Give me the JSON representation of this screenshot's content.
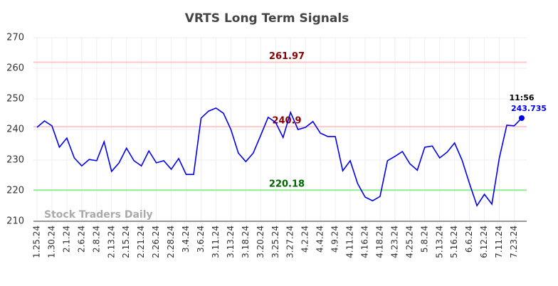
{
  "chart_data": {
    "type": "line",
    "title": "VRTS Long Term Signals",
    "categories": [
      "1.25.24",
      null,
      "1.30.24",
      null,
      "2.1.24",
      null,
      "2.6.24",
      null,
      "2.8.24",
      null,
      "2.13.24",
      null,
      "2.15.24",
      null,
      "2.21.24",
      null,
      "2.26.24",
      null,
      "2.28.24",
      null,
      "3.4.24",
      null,
      "3.6.24",
      null,
      "3.11.24",
      null,
      "3.13.24",
      null,
      "3.18.24",
      null,
      "3.20.24",
      null,
      "3.25.24",
      null,
      "3.27.24",
      null,
      "4.2.24",
      null,
      "4.4.24",
      null,
      "4.9.24",
      null,
      "4.11.24",
      null,
      "4.16.24",
      null,
      "4.18.24",
      null,
      "4.23.24",
      null,
      "4.25.24",
      null,
      "5.8.24",
      null,
      "5.13.24",
      null,
      "5.16.24",
      null,
      "6.6.24",
      null,
      "6.12.24",
      null,
      "7.11.24",
      null,
      "7.23.24",
      null
    ],
    "series": [
      {
        "color": "#0000ee",
        "values": [
          240.7,
          242.8,
          241.2,
          234.2,
          237.2,
          230.7,
          228.1,
          230.2,
          229.8,
          236.0,
          226.3,
          229.1,
          233.9,
          229.8,
          228.1,
          233.0,
          229.1,
          229.8,
          227.0,
          230.5,
          225.3,
          225.3,
          243.7,
          246.0,
          247.0,
          245.3,
          240.0,
          232.3,
          229.5,
          232.3,
          238.1,
          244.0,
          242.3,
          237.4,
          245.6,
          240.0,
          240.7,
          242.6,
          238.8,
          237.7,
          237.7,
          226.5,
          229.8,
          222.3,
          217.9,
          216.7,
          218.1,
          229.8,
          231.2,
          232.8,
          228.8,
          226.7,
          234.2,
          234.6,
          230.7,
          232.6,
          235.6,
          230.0,
          222.3,
          215.1,
          218.8,
          215.6,
          230.7,
          241.4,
          241.2,
          243.735
        ]
      }
    ],
    "hlines": [
      {
        "value": 261.97,
        "color": "#ffc8c8",
        "text_color": "#8b0000"
      },
      {
        "value": 240.9,
        "color": "#ffc8c8",
        "text_color": "#8b0000"
      },
      {
        "value": 220.18,
        "color": "#90ee90",
        "text_color": "#006400"
      }
    ],
    "last_time": "11:56",
    "watermark": "Stock Traders Daily",
    "ylim": [
      210,
      270
    ],
    "yticks": [
      210,
      220,
      230,
      240,
      250,
      260,
      270
    ],
    "grid": true
  }
}
